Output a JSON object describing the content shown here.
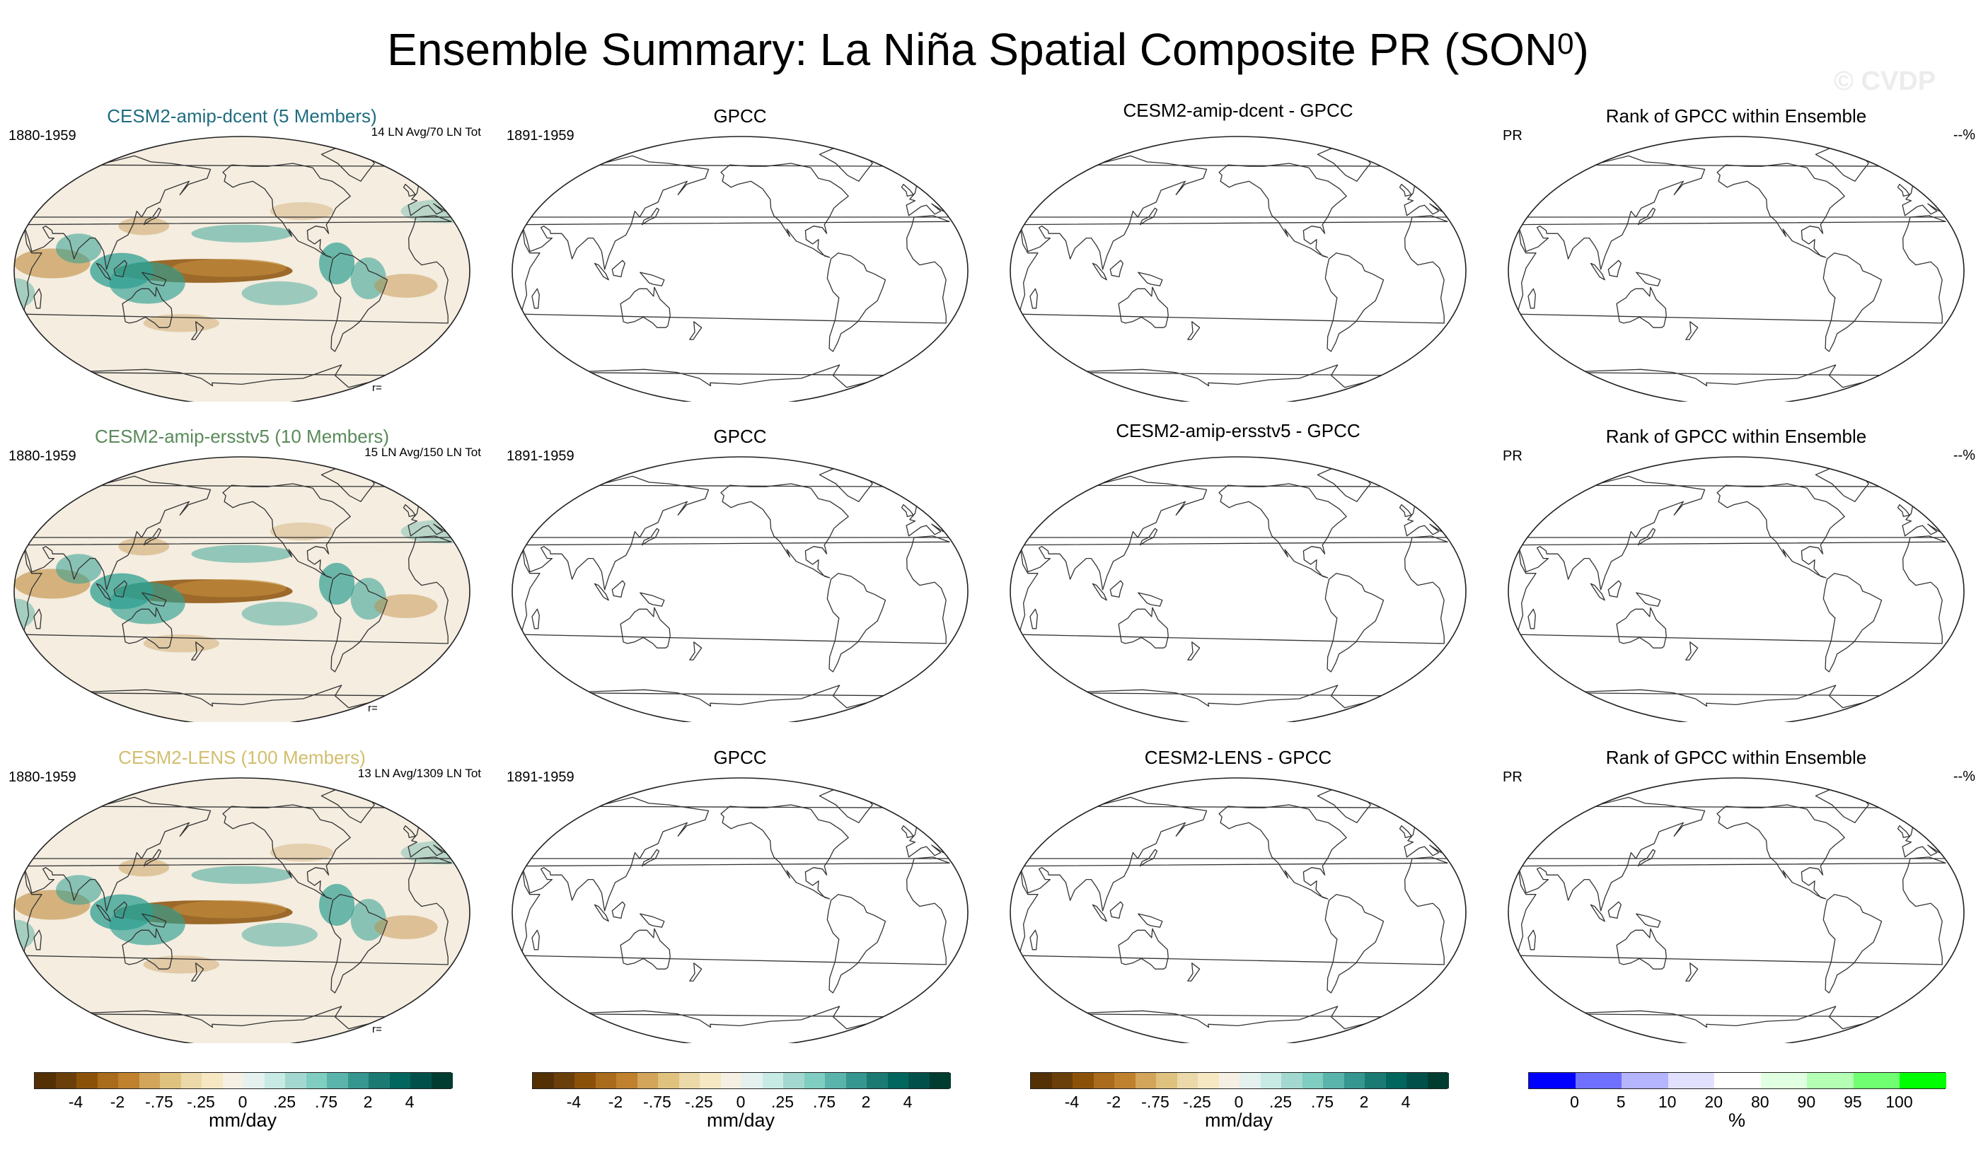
{
  "figure": {
    "title_main": "Ensemble Summary: La Niña Spatial Composite PR (SON",
    "title_sup": "0",
    "title_close": ")",
    "watermark": "© CVDP"
  },
  "colors": {
    "title_row1": "#1f6d80",
    "title_row2": "#5a8a5a",
    "title_row3": "#d2be6e"
  },
  "rows": [
    {
      "ensemble": {
        "title": "CESM2-amip-dcent (5 Members)",
        "period": "1880-1959",
        "event_count": "14 LN Avg/70 LN Tot",
        "correlation": "r="
      },
      "obs": {
        "title": "GPCC",
        "period": "1891-1959"
      },
      "diff": {
        "title": "CESM2-amip-dcent - GPCC"
      },
      "rank": {
        "title": "Rank of GPCC within Ensemble",
        "variable": "PR",
        "percent": "--%"
      }
    },
    {
      "ensemble": {
        "title": "CESM2-amip-ersstv5 (10 Members)",
        "period": "1880-1959",
        "event_count": "15 LN Avg/150 LN Tot",
        "correlation": "r="
      },
      "obs": {
        "title": "GPCC",
        "period": "1891-1959"
      },
      "diff": {
        "title": "CESM2-amip-ersstv5 - GPCC"
      },
      "rank": {
        "title": "Rank of GPCC within Ensemble",
        "variable": "PR",
        "percent": "--%"
      }
    },
    {
      "ensemble": {
        "title": "CESM2-LENS (100 Members)",
        "period": "1880-1959",
        "event_count": "13 LN Avg/1309 LN Tot",
        "correlation": "r="
      },
      "obs": {
        "title": "GPCC",
        "period": "1891-1959"
      },
      "diff": {
        "title": "CESM2-LENS - GPCC"
      },
      "rank": {
        "title": "Rank of GPCC within Ensemble",
        "variable": "PR",
        "percent": "--%"
      }
    }
  ],
  "colorbar_brbg": {
    "units": "mm/day",
    "ticks": [
      "-4",
      "-2",
      "-.75",
      "-.25",
      "0",
      ".25",
      ".75",
      "2",
      "4"
    ],
    "colors": [
      "#543005",
      "#6b3f0a",
      "#8c5109",
      "#a96c1c",
      "#bf812d",
      "#d2a55a",
      "#dfc27d",
      "#ecd9aa",
      "#f6e8c3",
      "#f5f0e3",
      "#e4f1ef",
      "#c7eae5",
      "#a3d8d0",
      "#80cdc1",
      "#5ab4ac",
      "#35978f",
      "#1b7a72",
      "#01665e",
      "#01514a",
      "#003c30"
    ]
  },
  "colorbar_rank": {
    "units": "%",
    "ticks": [
      "0",
      "5",
      "10",
      "20",
      "80",
      "90",
      "95",
      "100"
    ],
    "colors": [
      "#0000ff",
      "#7070ff",
      "#b4b4ff",
      "#e1e1ff",
      "#ffffff",
      "#e1ffe1",
      "#b4ffb4",
      "#70ff70",
      "#00ff00"
    ]
  },
  "map_fill": {
    "background": "#f4ede0",
    "wet": "#2f9f92",
    "wet_strong": "#18766c",
    "dry": "#c08a3a",
    "dry_strong": "#8c5109",
    "coast": "#333333"
  }
}
